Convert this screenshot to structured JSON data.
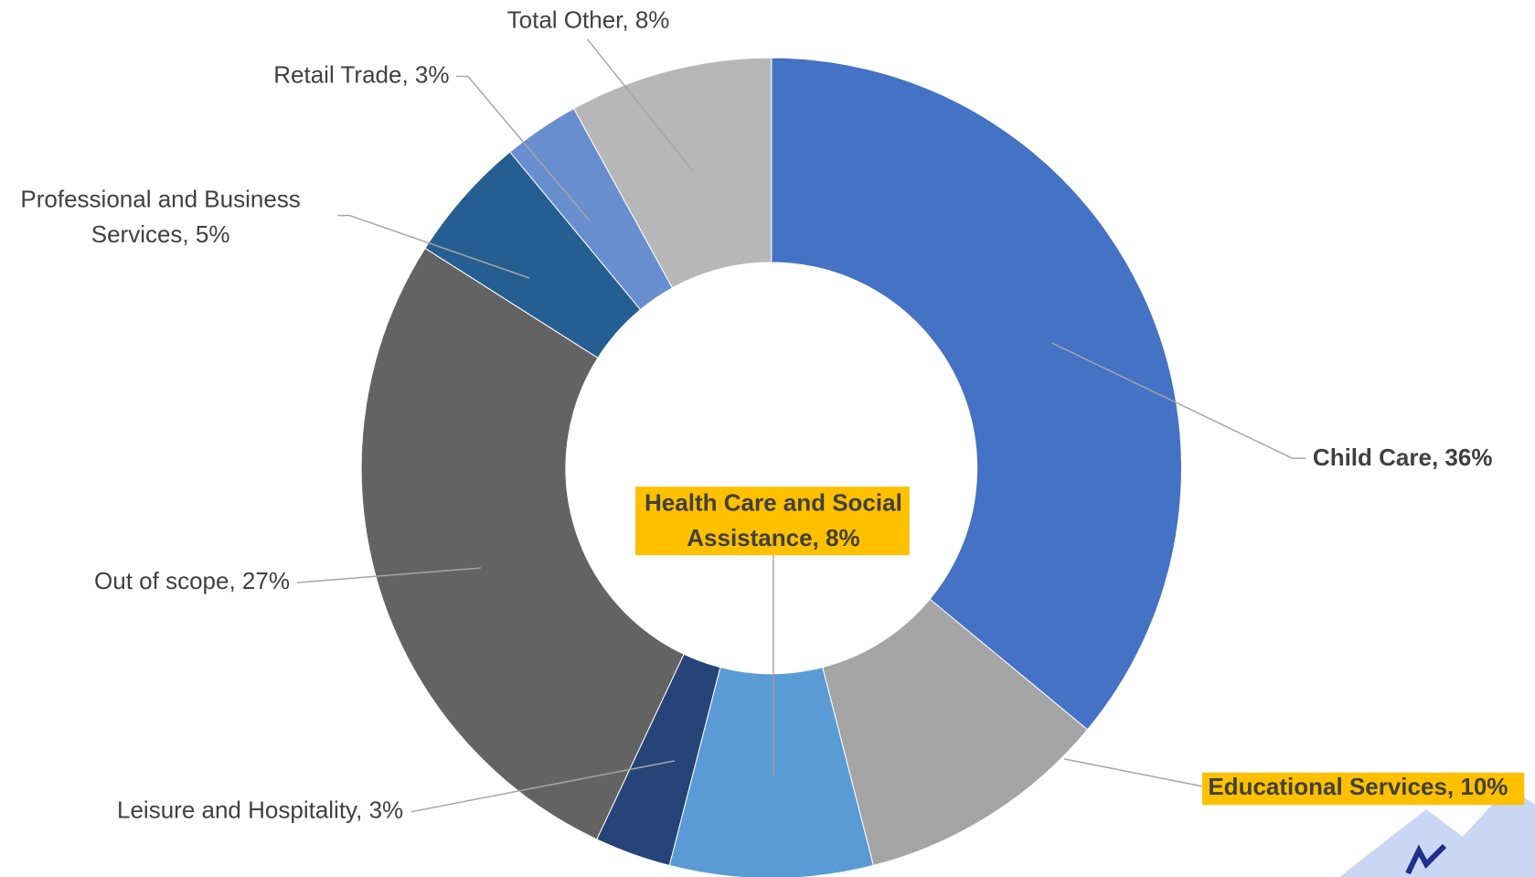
{
  "chart_data": {
    "type": "donut",
    "values": [
      36,
      10,
      8,
      3,
      27,
      5,
      3,
      8
    ],
    "value_labels": [
      "Child Care, 36%",
      "Educational Services, 10%",
      "Health Care and Social Assistance, 8%",
      "Leisure and Hospitality, 3%",
      "Out of scope, 27%",
      "Professional and Business Services, 5%",
      "Retail Trade, 3%",
      "Total Other, 8%"
    ],
    "colors": [
      "#4472c4",
      "#a5a5a5",
      "#5b9bd5",
      "#264478",
      "#636363",
      "#255e91",
      "#698ed0",
      "#b7b7b7"
    ],
    "highlighted": [
      false,
      true,
      true,
      false,
      false,
      false,
      false,
      false
    ]
  }
}
